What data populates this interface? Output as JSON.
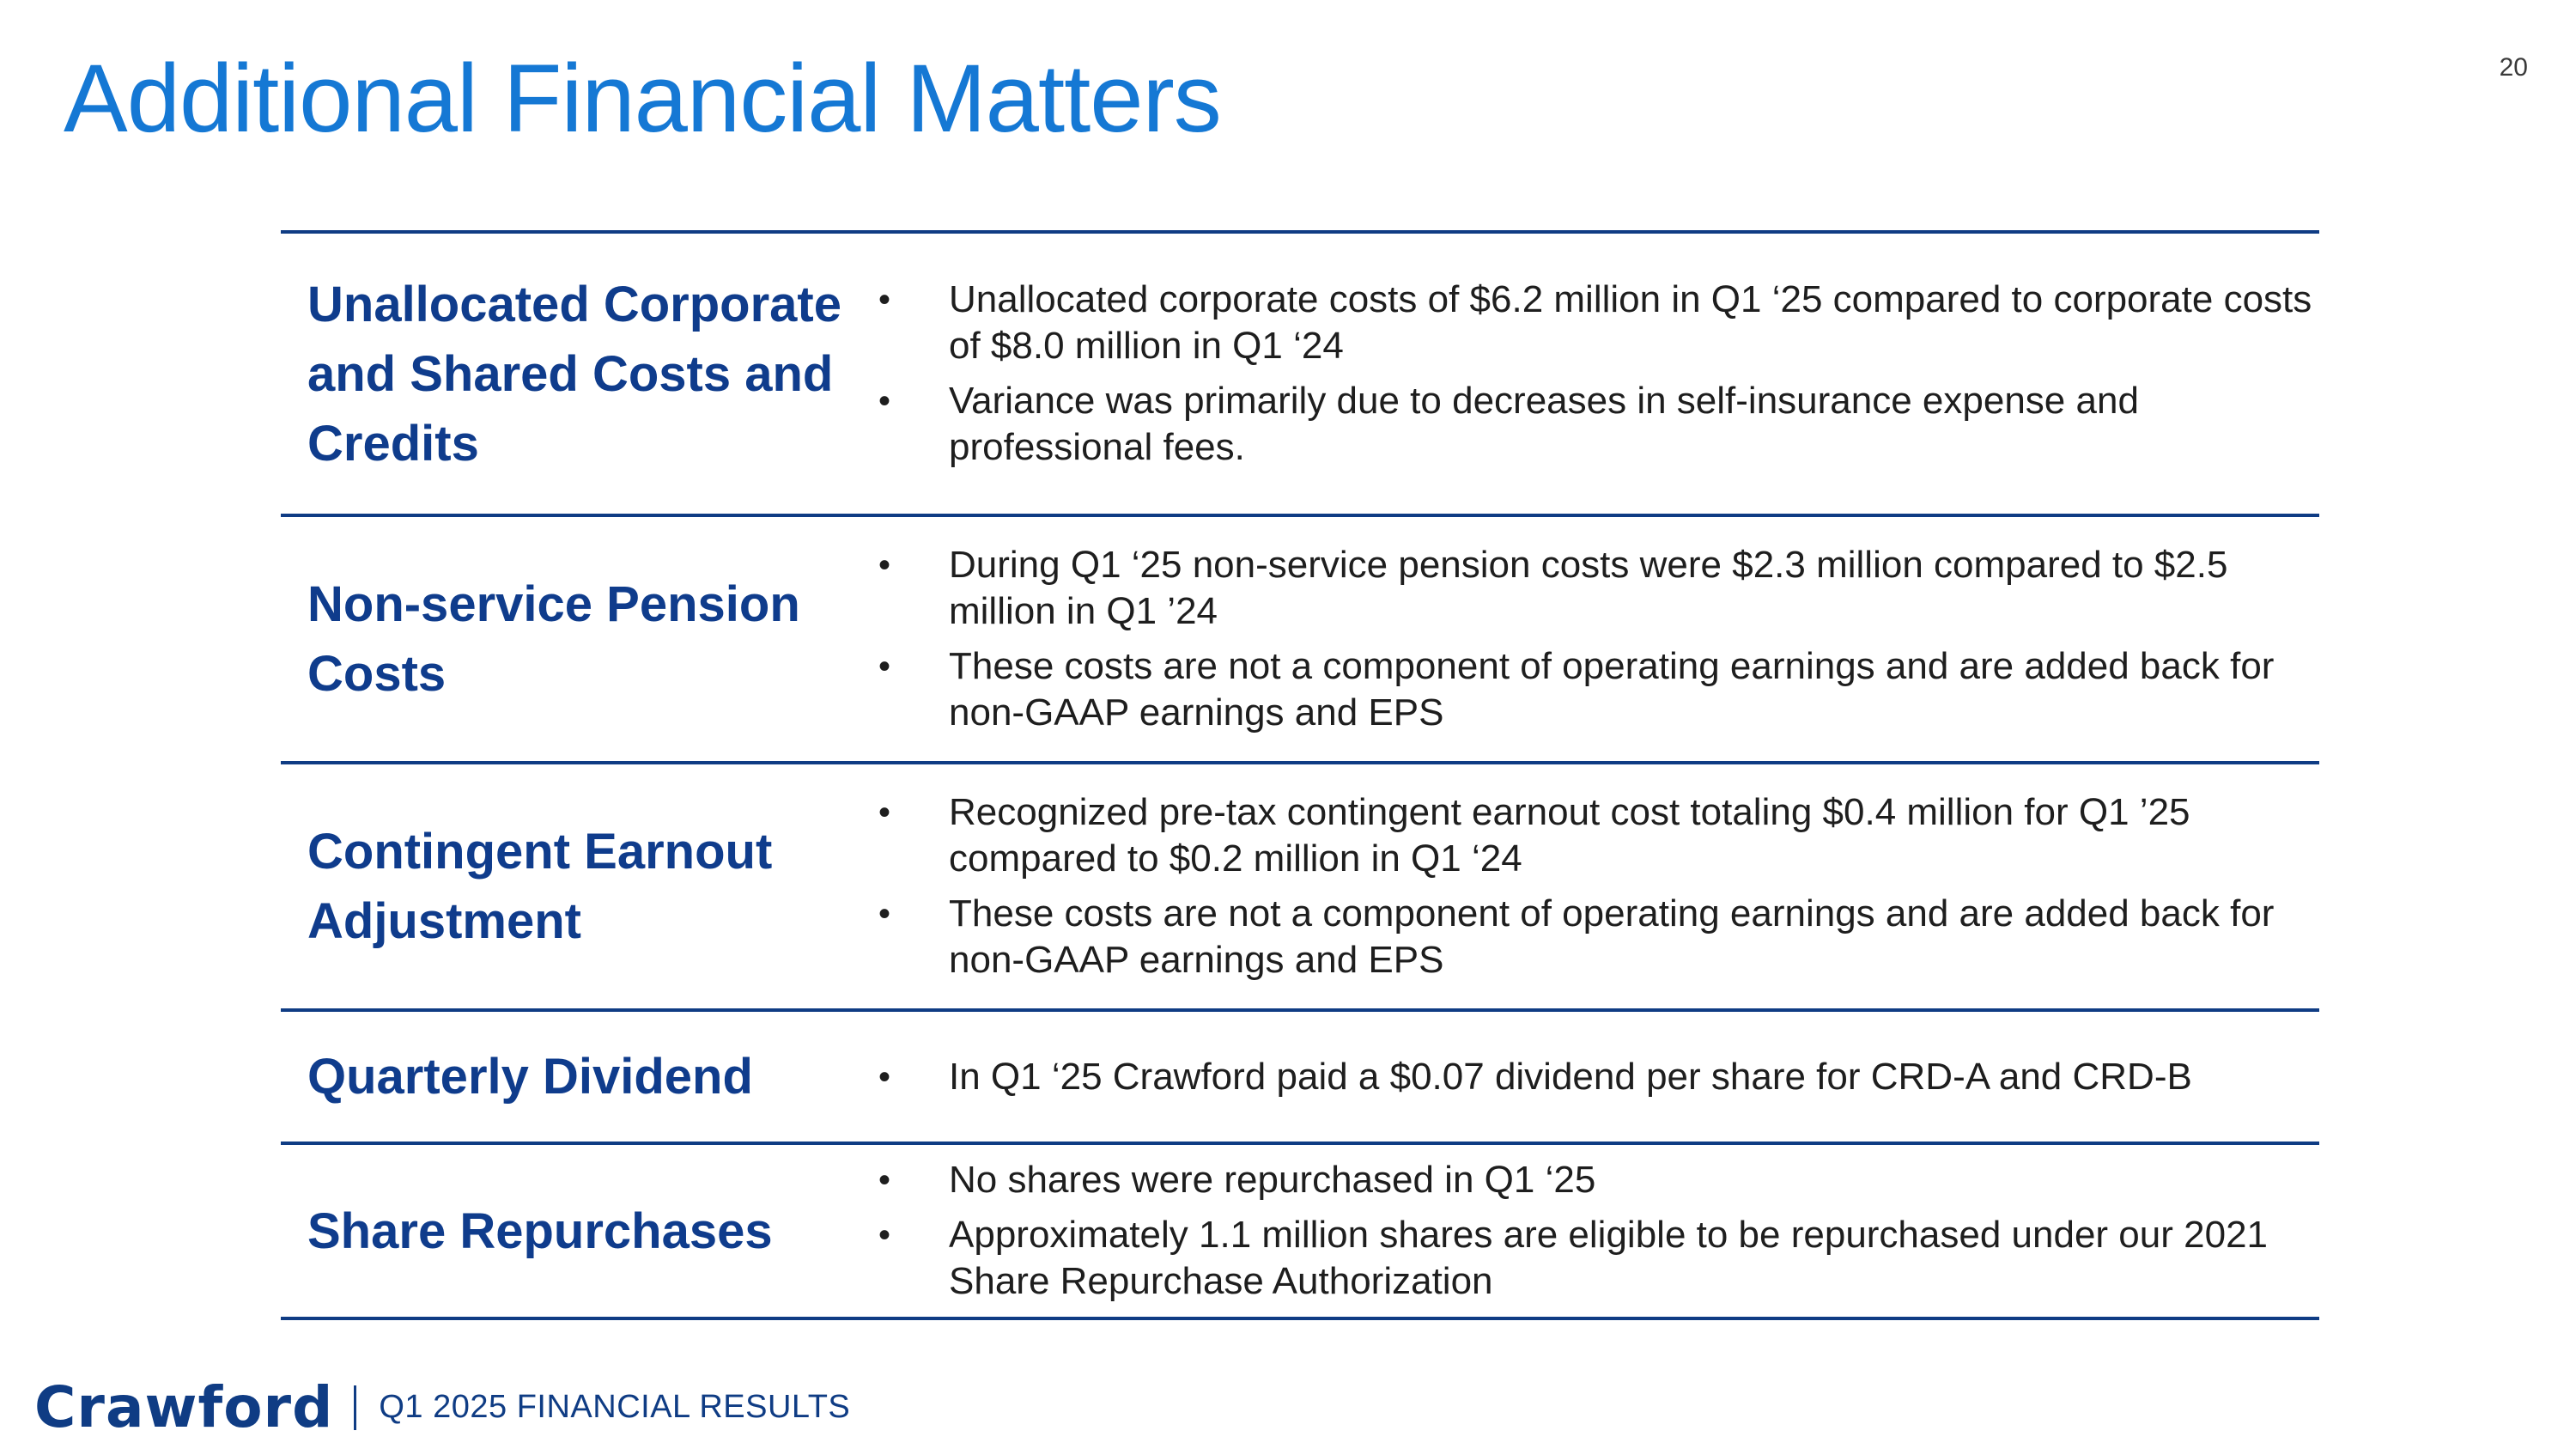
{
  "page": {
    "title": "Additional Financial Matters",
    "number": "20"
  },
  "rows": [
    {
      "label": "Unallocated Corporate and Shared Costs and Credits",
      "bullets": [
        "Unallocated corporate costs of $6.2 million in Q1 ‘25 compared to corporate costs of $8.0 million in Q1 ‘24",
        "Variance was primarily due to decreases in self-insurance expense and professional fees."
      ]
    },
    {
      "label": "Non-service Pension Costs",
      "bullets": [
        "During Q1 ‘25 non-service pension costs were $2.3 million compared to $2.5 million in Q1 ’24",
        "These costs are not a component of operating earnings and are added back for non-GAAP earnings and EPS"
      ]
    },
    {
      "label": "Contingent Earnout Adjustment",
      "bullets": [
        "Recognized pre-tax contingent earnout cost totaling $0.4 million for Q1 ’25 compared to $0.2 million in Q1 ‘24",
        "These costs are not a component of operating earnings and are added back for non-GAAP earnings and EPS"
      ]
    },
    {
      "label": "Quarterly Dividend",
      "bullets": [
        "In Q1 ‘25 Crawford paid a $0.07 dividend per share for CRD-A and CRD-B"
      ]
    },
    {
      "label": "Share Repurchases",
      "bullets": [
        "No shares were repurchased in Q1 ‘25",
        "Approximately 1.1 million shares are eligible to be repurchased under our 2021 Share Repurchase Authorization"
      ]
    }
  ],
  "footer": {
    "brand": "Crawford",
    "text": "Q1 2025 FINANCIAL RESULTS"
  }
}
